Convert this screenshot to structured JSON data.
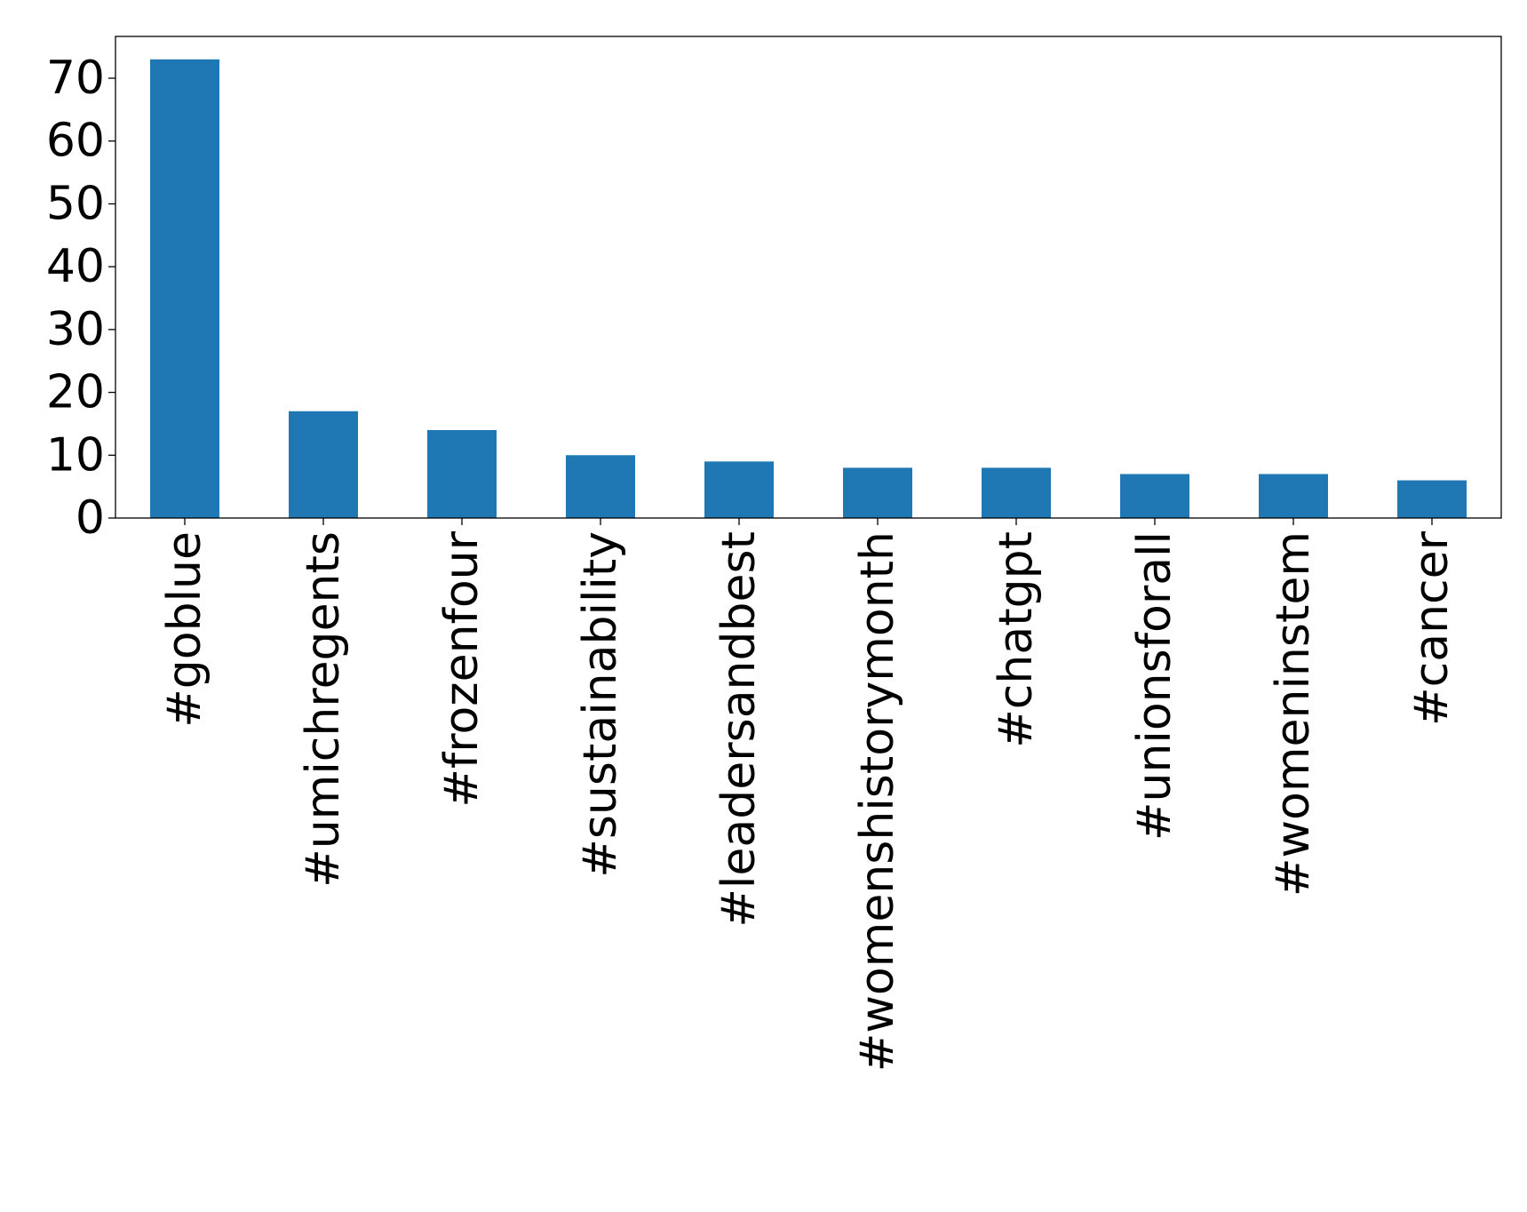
{
  "chart_data": {
    "type": "bar",
    "title": "",
    "xlabel": "",
    "ylabel": "",
    "categories": [
      "#goblue",
      "#umichregents",
      "#frozenfour",
      "#sustainability",
      "#leadersandbest",
      "#womenshistorymonth",
      "#chatgpt",
      "#unionsforall",
      "#womeninstem",
      "#cancer"
    ],
    "values": [
      73,
      17,
      14,
      10,
      9,
      8,
      8,
      7,
      7,
      6
    ],
    "ylim": [
      0,
      76.65
    ],
    "yticks": [
      0,
      10,
      20,
      30,
      40,
      50,
      60,
      70
    ],
    "grid": false,
    "legend": "none",
    "bar_color": "#1f77b4"
  }
}
